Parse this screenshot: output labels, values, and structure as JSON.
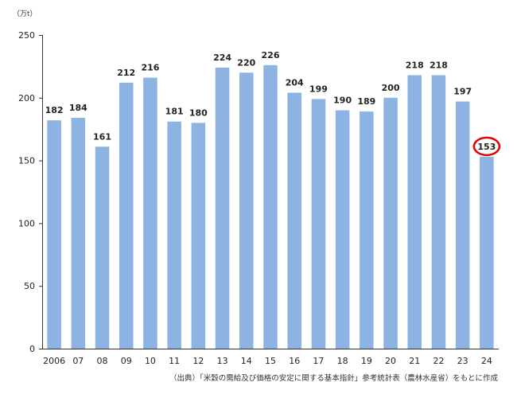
{
  "chart_data": {
    "type": "bar",
    "unit": "（万t）",
    "categories": [
      "2006",
      "07",
      "08",
      "09",
      "10",
      "11",
      "12",
      "13",
      "14",
      "15",
      "16",
      "17",
      "18",
      "19",
      "20",
      "21",
      "22",
      "23",
      "24"
    ],
    "values": [
      182,
      184,
      161,
      212,
      216,
      181,
      180,
      224,
      220,
      226,
      204,
      199,
      190,
      189,
      200,
      218,
      218,
      197,
      153
    ],
    "ylim": [
      0,
      250
    ],
    "yticks": [
      0,
      50,
      100,
      150,
      200,
      250
    ],
    "grid": false,
    "bar_color": "#8db3e2",
    "highlight": {
      "category": "24",
      "value": 153,
      "color": "#e00000"
    },
    "source": "（出典）「米穀の需給及び価格の安定に関する基本指針」参考統計表（農林水産省）をもとに作成"
  }
}
